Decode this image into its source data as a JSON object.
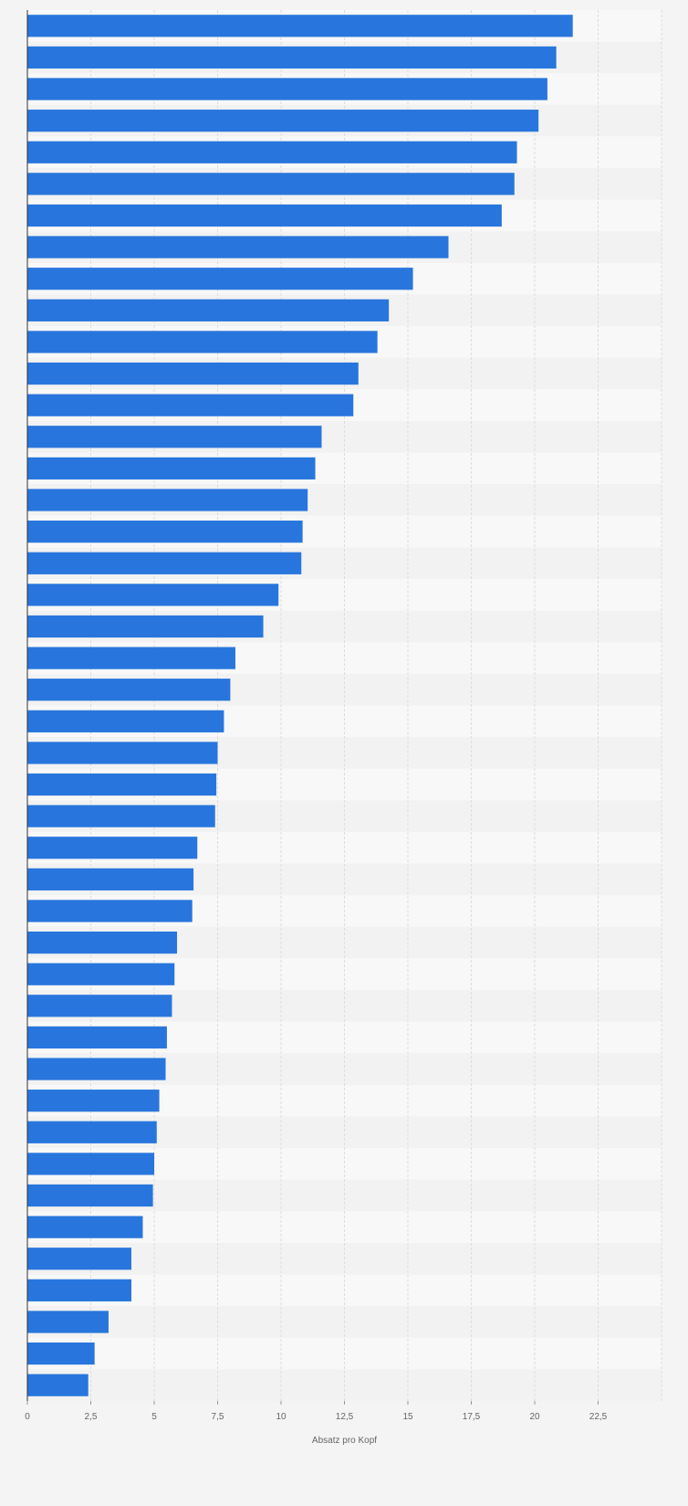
{
  "chart_data": {
    "type": "bar",
    "orientation": "horizontal",
    "title": "",
    "xlabel": "Absatz pro Kopf",
    "ylabel": "",
    "xlim": [
      0,
      25
    ],
    "xticks": [
      0,
      2.5,
      5,
      7.5,
      10,
      12.5,
      15,
      17.5,
      20,
      22.5
    ],
    "xtick_labels": [
      "0",
      "2,5",
      "5",
      "7,5",
      "10",
      "12,5",
      "15",
      "17,5",
      "20",
      "22,5"
    ],
    "grid": true,
    "bar_color": "#2876dd",
    "values": [
      21.5,
      20.85,
      20.5,
      20.15,
      19.3,
      19.2,
      18.7,
      16.6,
      15.2,
      14.25,
      13.8,
      13.05,
      12.85,
      11.6,
      11.35,
      11.05,
      10.85,
      10.8,
      9.9,
      9.3,
      8.2,
      8.0,
      7.75,
      7.5,
      7.45,
      7.4,
      6.7,
      6.55,
      6.5,
      5.9,
      5.8,
      5.7,
      5.5,
      5.45,
      5.2,
      5.1,
      5.0,
      4.95,
      4.55,
      4.1,
      4.1,
      3.2,
      2.65,
      2.4
    ]
  }
}
